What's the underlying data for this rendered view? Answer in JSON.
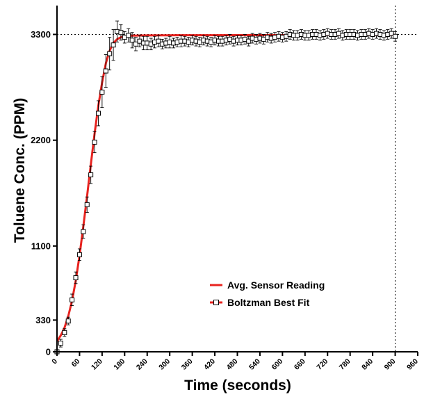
{
  "chart_data": {
    "type": "line",
    "xlabel": "Time (seconds)",
    "ylabel": "Toluene Conc. (PPM)",
    "xlim": [
      0,
      960
    ],
    "ylim": [
      0,
      3600
    ],
    "x_ticks": [
      0,
      60,
      120,
      180,
      240,
      300,
      360,
      420,
      480,
      540,
      600,
      660,
      720,
      780,
      840,
      900,
      960
    ],
    "y_ticks": [
      0,
      330,
      1100,
      2200,
      3300
    ],
    "reference_lines": {
      "horizontal": 3300,
      "vertical": 900,
      "style": "dotted"
    },
    "legend": {
      "placement": "lower-center"
    },
    "colors": {
      "fit_line": "#e8231f",
      "markers": "#000000"
    },
    "series": [
      {
        "name": "Avg. Sensor Reading",
        "style": "line",
        "color": "#e8231f",
        "x": [
          0,
          10,
          20,
          30,
          40,
          50,
          60,
          70,
          80,
          90,
          100,
          110,
          120,
          130,
          140,
          150,
          160,
          170,
          180,
          200,
          240,
          300,
          400,
          500,
          600,
          700,
          800,
          900
        ],
        "y": [
          110,
          170,
          250,
          370,
          530,
          740,
          1000,
          1300,
          1620,
          1950,
          2270,
          2560,
          2800,
          3000,
          3130,
          3210,
          3250,
          3270,
          3280,
          3287,
          3290,
          3291,
          3292,
          3293,
          3293,
          3294,
          3294,
          3295
        ]
      },
      {
        "name": "Boltzman Best Fit",
        "style": "markers-with-errorbars",
        "x": [
          0,
          10,
          20,
          30,
          40,
          50,
          60,
          70,
          80,
          90,
          100,
          110,
          120,
          130,
          140,
          150,
          160,
          170,
          180,
          190,
          200,
          210,
          220,
          230,
          240,
          250,
          260,
          270,
          280,
          290,
          300,
          310,
          320,
          330,
          340,
          350,
          360,
          370,
          380,
          390,
          400,
          410,
          420,
          430,
          440,
          450,
          460,
          470,
          480,
          490,
          500,
          510,
          520,
          530,
          540,
          550,
          560,
          570,
          580,
          590,
          600,
          610,
          620,
          630,
          640,
          650,
          660,
          670,
          680,
          690,
          700,
          710,
          720,
          730,
          740,
          750,
          760,
          770,
          780,
          790,
          800,
          810,
          820,
          830,
          840,
          850,
          860,
          870,
          880,
          890,
          900
        ],
        "y": [
          0,
          90,
          200,
          320,
          540,
          770,
          1010,
          1250,
          1530,
          1840,
          2180,
          2480,
          2700,
          2920,
          3100,
          3190,
          3330,
          3320,
          3270,
          3290,
          3240,
          3200,
          3230,
          3210,
          3210,
          3200,
          3220,
          3230,
          3200,
          3210,
          3220,
          3210,
          3220,
          3230,
          3230,
          3220,
          3240,
          3230,
          3220,
          3240,
          3230,
          3220,
          3240,
          3230,
          3230,
          3240,
          3250,
          3230,
          3240,
          3240,
          3250,
          3230,
          3260,
          3250,
          3260,
          3250,
          3270,
          3260,
          3270,
          3280,
          3270,
          3280,
          3300,
          3290,
          3290,
          3300,
          3290,
          3290,
          3300,
          3300,
          3290,
          3300,
          3310,
          3300,
          3300,
          3310,
          3290,
          3300,
          3300,
          3300,
          3290,
          3300,
          3300,
          3310,
          3300,
          3310,
          3300,
          3290,
          3300,
          3310,
          3280
        ],
        "error": [
          0,
          40,
          40,
          40,
          60,
          60,
          60,
          70,
          80,
          90,
          110,
          130,
          160,
          170,
          170,
          160,
          110,
          80,
          60,
          70,
          80,
          70,
          60,
          70,
          70,
          60,
          60,
          60,
          50,
          50,
          60,
          50,
          50,
          60,
          50,
          50,
          50,
          50,
          50,
          50,
          50,
          50,
          50,
          50,
          50,
          50,
          50,
          50,
          50,
          50,
          50,
          50,
          50,
          50,
          50,
          50,
          50,
          50,
          50,
          50,
          50,
          50,
          50,
          50,
          50,
          50,
          50,
          50,
          50,
          50,
          50,
          50,
          50,
          50,
          50,
          50,
          50,
          50,
          50,
          50,
          50,
          50,
          50,
          50,
          50,
          50,
          50,
          50,
          50,
          50,
          50
        ]
      }
    ]
  }
}
